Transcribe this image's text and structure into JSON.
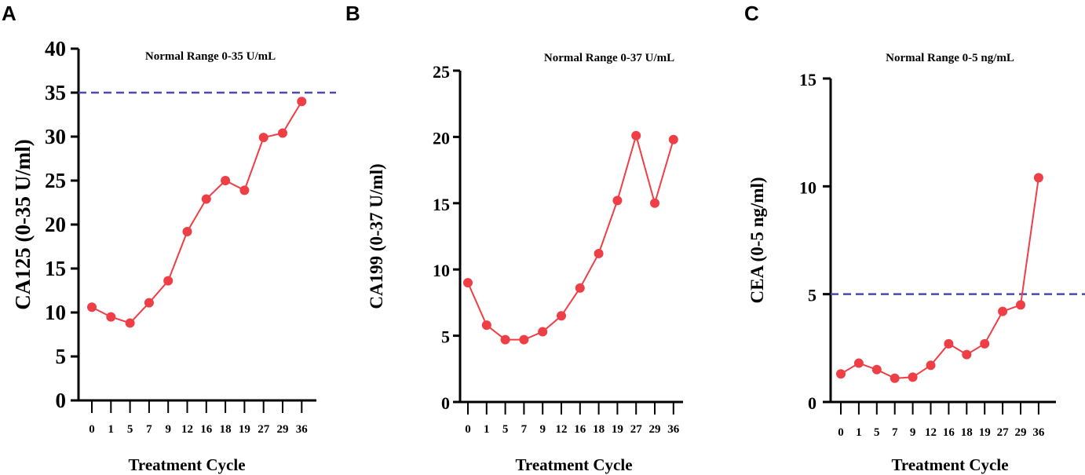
{
  "chart_data": [
    {
      "panel": "A",
      "type": "line",
      "annotation": "Normal Range 0-35 U/mL",
      "threshold": 35,
      "xlabel": "Treatment Cycle",
      "ylabel": "CA125 (0-35 U/ml)",
      "categories": [
        "0",
        "1",
        "5",
        "7",
        "9",
        "12",
        "16",
        "18",
        "19",
        "27",
        "29",
        "36"
      ],
      "values": [
        10.6,
        9.5,
        8.8,
        11.1,
        13.6,
        19.2,
        22.9,
        25.0,
        23.9,
        29.9,
        30.4,
        34.0
      ],
      "ylim": [
        0,
        40
      ],
      "yticks": [
        0,
        5,
        10,
        15,
        20,
        25,
        30,
        35,
        40
      ],
      "color": "#ee3e46",
      "threshold_color": "#4a4aa8"
    },
    {
      "panel": "B",
      "type": "line",
      "annotation": "Normal Range 0-37 U/mL",
      "xlabel": "Treatment Cycle",
      "ylabel": "CA199 (0-37 U/ml)",
      "categories": [
        "0",
        "1",
        "5",
        "7",
        "9",
        "12",
        "16",
        "18",
        "19",
        "27",
        "29",
        "36"
      ],
      "values": [
        9.0,
        5.8,
        4.7,
        4.7,
        5.3,
        6.5,
        8.6,
        11.2,
        15.2,
        20.1,
        15.0,
        19.8
      ],
      "ylim": [
        0,
        25
      ],
      "yticks": [
        0,
        5,
        10,
        15,
        20,
        25
      ],
      "color": "#ee3e46"
    },
    {
      "panel": "C",
      "type": "line",
      "annotation": "Normal Range 0-5 ng/mL",
      "threshold": 5,
      "xlabel": "Treatment Cycle",
      "ylabel": "CEA (0-5 ng/ml)",
      "categories": [
        "0",
        "1",
        "5",
        "7",
        "9",
        "12",
        "16",
        "18",
        "19",
        "27",
        "29",
        "36"
      ],
      "values": [
        1.3,
        1.8,
        1.5,
        1.1,
        1.15,
        1.7,
        2.7,
        2.2,
        2.7,
        4.2,
        4.5,
        10.4
      ],
      "ylim": [
        0,
        15
      ],
      "yticks": [
        0,
        5,
        10,
        15
      ],
      "color": "#ee3e46",
      "threshold_color": "#4a4aa8"
    }
  ]
}
